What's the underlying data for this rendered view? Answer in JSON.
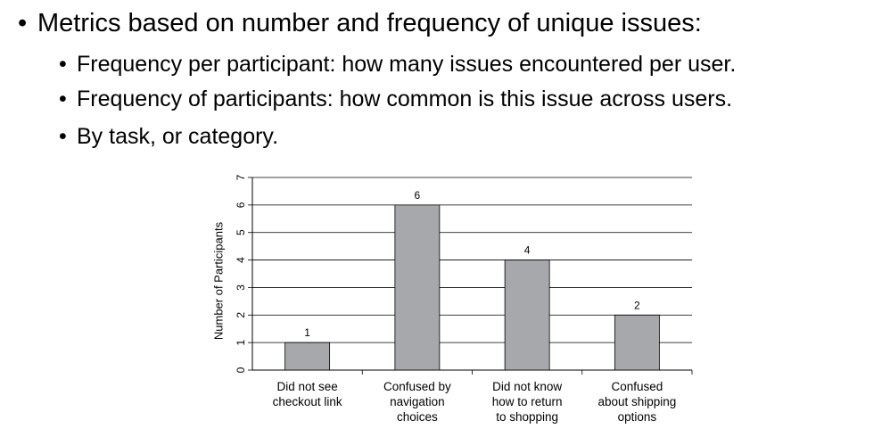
{
  "bullets": {
    "main": "Metrics based on number and frequency of unique issues:",
    "sub": [
      "Frequency per participant: how many issues encountered per user.",
      "Frequency of participants: how common is this issue across users.",
      "By task, or category."
    ],
    "bullet_char": "•"
  },
  "chart_data": {
    "type": "bar",
    "categories": [
      [
        "Did not see",
        "checkout link"
      ],
      [
        "Confused by",
        "navigation",
        "choices"
      ],
      [
        "Did not know",
        "how to return",
        "to shopping"
      ],
      [
        "Confused",
        "about shipping",
        "options"
      ]
    ],
    "values": [
      1,
      6,
      4,
      2
    ],
    "ylabel": "Number of Participants",
    "ylim": [
      0,
      7
    ],
    "yticks": [
      0,
      1,
      2,
      3,
      4,
      5,
      6,
      7
    ],
    "grid": true,
    "bar_color": "#a7a8ab",
    "data_labels": true
  }
}
